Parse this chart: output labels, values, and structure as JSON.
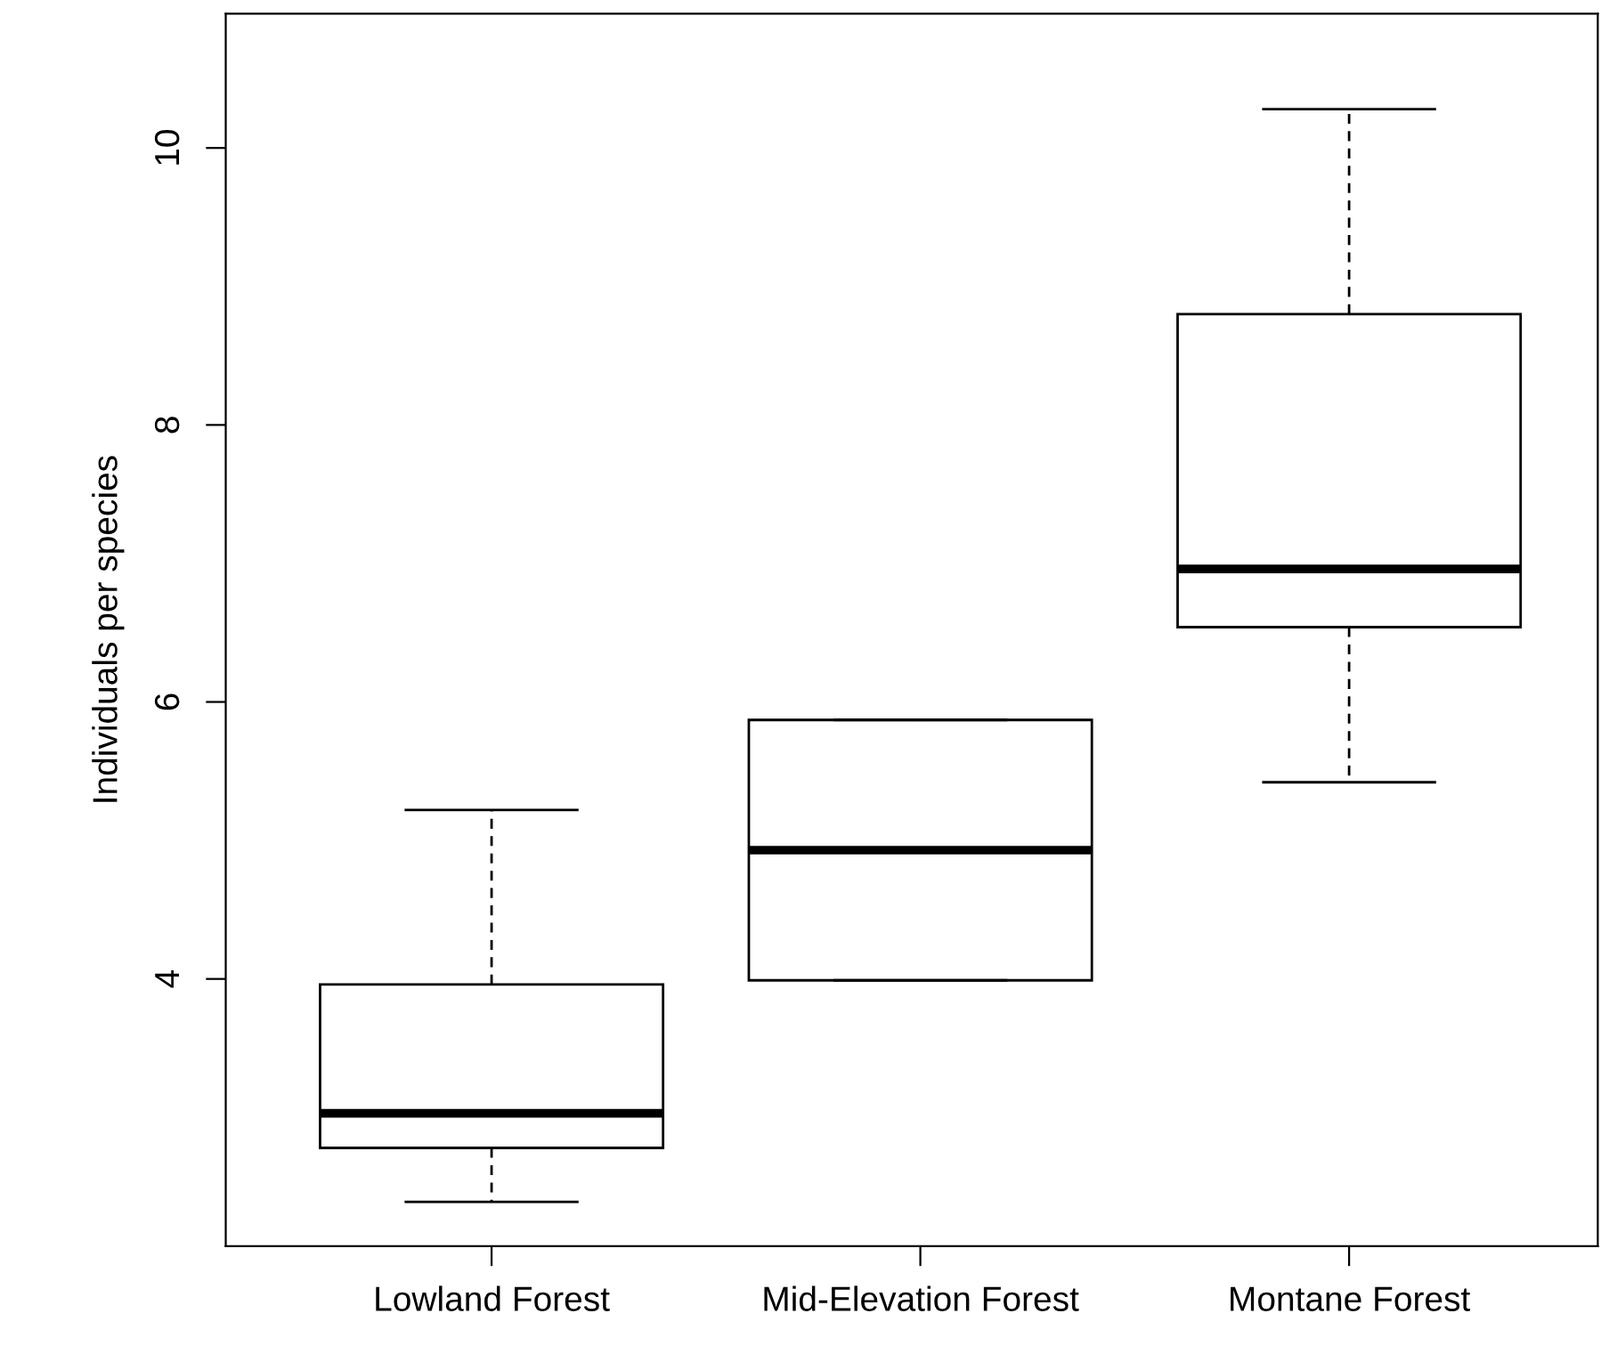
{
  "chart_data": {
    "type": "box",
    "ylabel": "Individuals per species",
    "categories": [
      "Lowland Forest",
      "Mid-Elevation Forest",
      "Montane Forest"
    ],
    "boxes": [
      {
        "low": 2.39,
        "q1": 2.78,
        "median": 3.03,
        "q3": 3.96,
        "high": 5.22
      },
      {
        "low": 3.99,
        "q1": 3.99,
        "median": 4.93,
        "q3": 5.87,
        "high": 5.87
      },
      {
        "low": 5.42,
        "q1": 6.54,
        "median": 6.96,
        "q3": 8.8,
        "high": 10.28
      }
    ],
    "color": "#ffffff",
    "ylim": [
      2.07,
      10.97
    ],
    "yticks": [
      4,
      6,
      8,
      10
    ],
    "grid": false,
    "legend": false
  }
}
